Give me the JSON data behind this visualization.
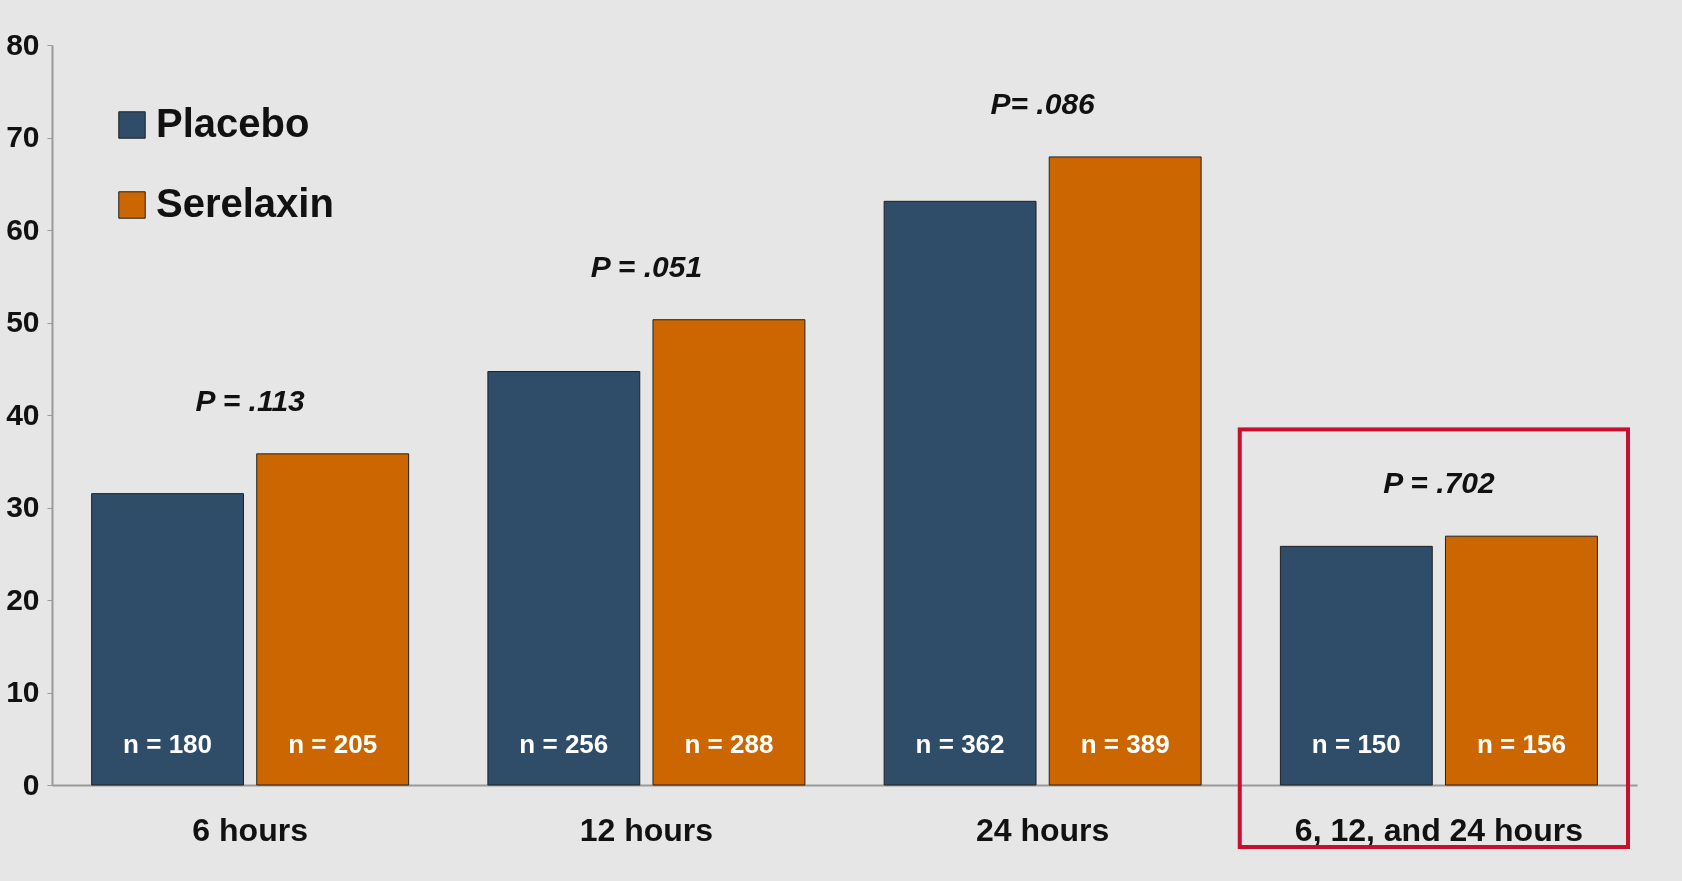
{
  "chart_data": {
    "type": "bar",
    "categories": [
      "6 hours",
      "12 hours",
      "24 hours",
      "6, 12, and 24 hours"
    ],
    "series": [
      {
        "name": "Placebo",
        "color": "#2f4c68",
        "values": [
          31.5,
          44.7,
          63.1,
          25.8
        ]
      },
      {
        "name": "Serelaxin",
        "color": "#cc6600",
        "values": [
          35.8,
          50.3,
          67.9,
          26.9
        ]
      }
    ],
    "ylim": [
      0,
      80
    ],
    "yticks": [
      0,
      10,
      20,
      30,
      40,
      50,
      60,
      70,
      80
    ],
    "grid": false,
    "legend": "top left",
    "annotations": [
      "P = .113",
      "P = .051",
      "P= .086",
      "P = .702",
      "n = 180",
      "n = 205",
      "n = 256",
      "n = 288",
      "n = 362",
      "n = 389",
      "n = 150",
      "n = 156"
    ]
  }
}
